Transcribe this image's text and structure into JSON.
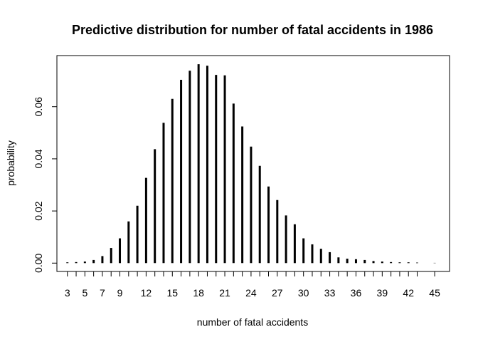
{
  "chart_data": {
    "type": "bar",
    "title": "Predictive distribution for number of fatal accidents in 1986",
    "xlabel": "number of fatal accidents",
    "ylabel": "probability",
    "x": [
      3,
      4,
      5,
      6,
      7,
      8,
      9,
      10,
      11,
      12,
      13,
      14,
      15,
      16,
      17,
      18,
      19,
      20,
      21,
      22,
      23,
      24,
      25,
      26,
      27,
      28,
      29,
      30,
      31,
      32,
      33,
      34,
      35,
      36,
      37,
      38,
      39,
      40,
      41,
      42,
      43,
      45
    ],
    "values": [
      0.0003,
      0.0004,
      0.0006,
      0.0012,
      0.0027,
      0.0058,
      0.0095,
      0.016,
      0.022,
      0.0327,
      0.0437,
      0.0538,
      0.063,
      0.0703,
      0.0738,
      0.0763,
      0.0757,
      0.0722,
      0.072,
      0.0612,
      0.0524,
      0.0447,
      0.0373,
      0.0294,
      0.0242,
      0.0183,
      0.0149,
      0.0095,
      0.0072,
      0.0055,
      0.0042,
      0.0022,
      0.0017,
      0.0015,
      0.0012,
      0.0008,
      0.0006,
      0.0004,
      0.0003,
      0.0003,
      0.0002,
      0.0001
    ],
    "xticks": [
      3,
      5,
      7,
      9,
      12,
      15,
      18,
      21,
      24,
      27,
      30,
      33,
      36,
      39,
      42,
      45
    ],
    "yticks": [
      0.0,
      0.02,
      0.04,
      0.06
    ],
    "ytick_labels": [
      "0.00",
      "0.02",
      "0.04",
      "0.06"
    ],
    "xlim": [
      1.8,
      46.7
    ],
    "ylim": [
      -0.0032,
      0.0796
    ],
    "grid": false,
    "legend": "none"
  }
}
